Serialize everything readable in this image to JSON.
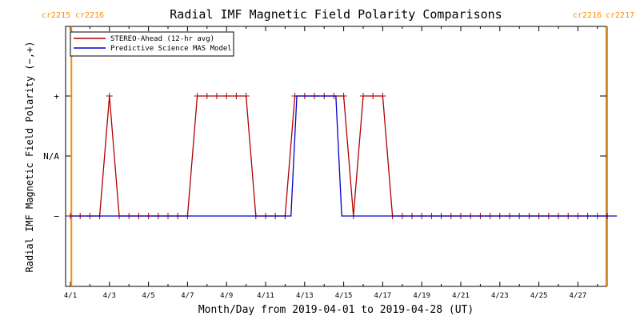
{
  "chart_data": {
    "type": "line",
    "title": "Radial IMF Magnetic Field Polarity Comparisons",
    "xlabel": "Month/Day from 2019-04-01 to 2019-04-28 (UT)",
    "ylabel": "Radial IMF Magnetic Field Polarity (−,+)",
    "x_tick_labels": [
      "4/1",
      "4/3",
      "4/5",
      "4/7",
      "4/9",
      "4/11",
      "4/13",
      "4/15",
      "4/17",
      "4/19",
      "4/21",
      "4/23",
      "4/25",
      "4/27"
    ],
    "y_tick_labels": [
      "−",
      "N/A",
      "+"
    ],
    "ylim": [
      -2,
      2
    ],
    "xlim": [
      0,
      28
    ],
    "carrington_markers": [
      {
        "label_left": "cr2215",
        "label_right": "cr2216",
        "day": 0.05
      },
      {
        "label_left": "cr2216",
        "label_right": "cr2217",
        "day": 27.5
      }
    ],
    "legend": {
      "placement": "top-left",
      "entries": [
        "STEREO-Ahead (12-hr avg)",
        "Predictive Science MAS Model"
      ]
    },
    "colors": {
      "stereo": "#b00000",
      "model": "#0000cc",
      "carrington": "#ff8c00",
      "axes": "#000000"
    },
    "series": [
      {
        "name": "STEREO-Ahead (12-hr avg)",
        "x": [
          0.0,
          0.5,
          1.0,
          1.5,
          2.0,
          2.5,
          3.0,
          3.5,
          4.0,
          4.5,
          5.0,
          5.5,
          6.0,
          6.5,
          7.0,
          7.5,
          8.0,
          8.5,
          9.0,
          9.5,
          10.0,
          10.5,
          11.0,
          11.5,
          12.0,
          12.5,
          13.0,
          13.5,
          14.0,
          14.5,
          15.0,
          15.5,
          16.0,
          16.5,
          17.0,
          17.5,
          18.0,
          18.5,
          19.0,
          19.5,
          20.0,
          20.5,
          21.0,
          21.5,
          22.0,
          22.5,
          23.0,
          23.5,
          24.0,
          24.5,
          25.0,
          25.5,
          26.0,
          26.5,
          27.0,
          27.5
        ],
        "y": [
          -1,
          -1,
          -1,
          -1,
          1,
          -1,
          -1,
          -1,
          -1,
          -1,
          -1,
          -1,
          -1,
          1,
          1,
          1,
          1,
          1,
          1,
          -1,
          -1,
          -1,
          -1,
          1,
          1,
          1,
          1,
          1,
          1,
          -1,
          1,
          1,
          1,
          -1,
          -1,
          -1,
          -1,
          -1,
          -1,
          -1,
          -1,
          -1,
          -1,
          -1,
          -1,
          -1,
          -1,
          -1,
          -1,
          -1,
          -1,
          -1,
          -1,
          -1,
          -1,
          -1
        ],
        "markers": "plus"
      },
      {
        "name": "Predictive Science MAS Model",
        "x": [
          0.0,
          11.3,
          11.6,
          13.6,
          13.9,
          28.0
        ],
        "y": [
          -1,
          -1,
          1,
          1,
          -1,
          -1
        ]
      }
    ]
  }
}
